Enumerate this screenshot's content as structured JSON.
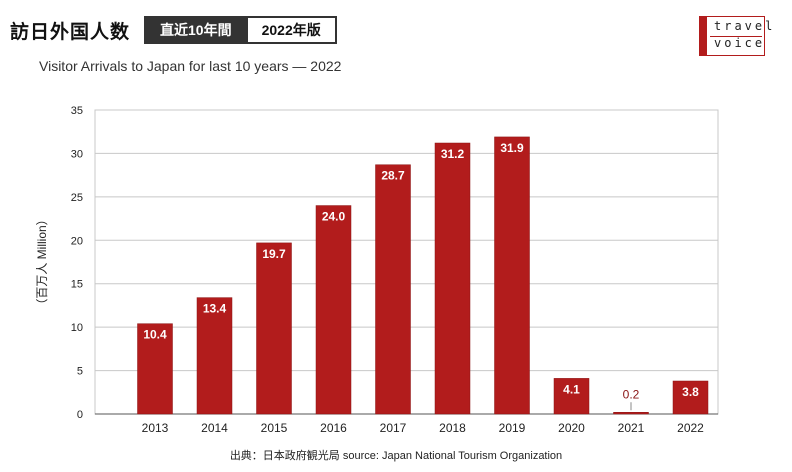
{
  "header": {
    "title": "訪日外国人数",
    "tag_period": "直近10年間",
    "tag_edition": "2022年版",
    "subtitle": "Visitor Arrivals to Japan for last 10 years  —  2022"
  },
  "logo": {
    "line1": "travel",
    "line2": "voice"
  },
  "source": "出典：日本政府観光局  source: Japan National Tourism Organization",
  "colors": {
    "bar": "#b21c1c",
    "grid": "#c8c8c8",
    "text": "#222222"
  },
  "chart_data": {
    "type": "bar",
    "categories": [
      "2013",
      "2014",
      "2015",
      "2016",
      "2017",
      "2018",
      "2019",
      "2020",
      "2021",
      "2022"
    ],
    "values": [
      10.4,
      13.4,
      19.7,
      24.0,
      28.7,
      31.2,
      31.9,
      4.1,
      0.2,
      3.8
    ],
    "labels": [
      "10.4",
      "13.4",
      "19.7",
      "24.0",
      "28.7",
      "31.2",
      "31.9",
      "4.1",
      "0.2",
      "3.8"
    ],
    "ylabel": "（百万人 Million）",
    "ylim": [
      0,
      35
    ],
    "yticks": [
      "0",
      "5",
      "10",
      "15",
      "20",
      "25",
      "30",
      "35"
    ],
    "grid": true
  }
}
